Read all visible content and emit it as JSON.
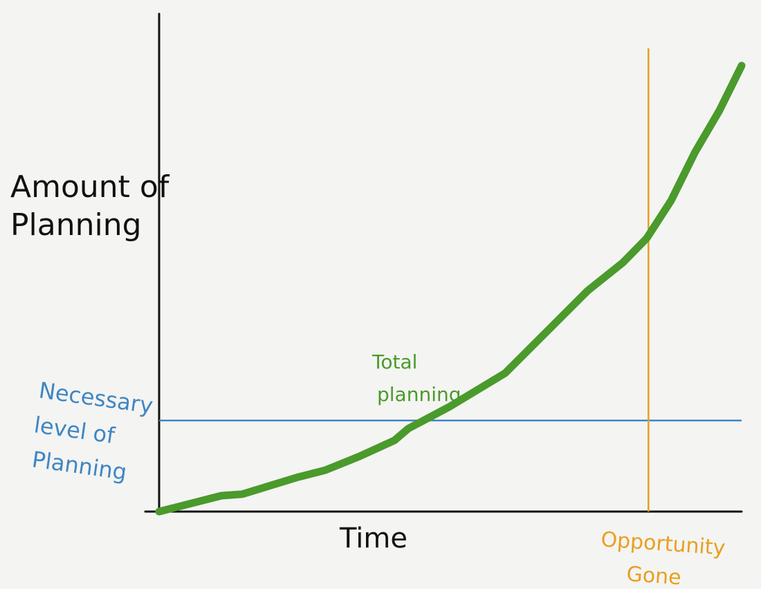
{
  "chart_data": {
    "type": "line",
    "y_label": [
      "Amount of",
      "Planning"
    ],
    "x_label": "Time",
    "xlim": [
      0,
      100
    ],
    "ylim": [
      0,
      100
    ],
    "series": [
      {
        "name": [
          "Total",
          "planning"
        ],
        "color": "#4a9a2c",
        "x": [
          0,
          10.7,
          14.3,
          23.8,
          28.5,
          34.4,
          40.4,
          42.8,
          49.9,
          59.4,
          67.7,
          73.6,
          79.6,
          83.7,
          87.9,
          92.0,
          96.2,
          100
        ],
        "values": [
          0,
          3.2,
          3.5,
          6.9,
          8.3,
          11.1,
          14.3,
          16.7,
          21.1,
          27.8,
          37.5,
          44.4,
          50.0,
          54.9,
          62.5,
          72.2,
          80.6,
          89.6
        ]
      }
    ],
    "reference_lines": [
      {
        "axis": "y",
        "value": 18.3,
        "color": "#3f86c4",
        "label": [
          "Necessary",
          "level of",
          "Planning"
        ]
      },
      {
        "axis": "x",
        "value": 84.0,
        "color": "#e8a020",
        "label": [
          "Opportunity",
          "Gone"
        ]
      }
    ]
  }
}
